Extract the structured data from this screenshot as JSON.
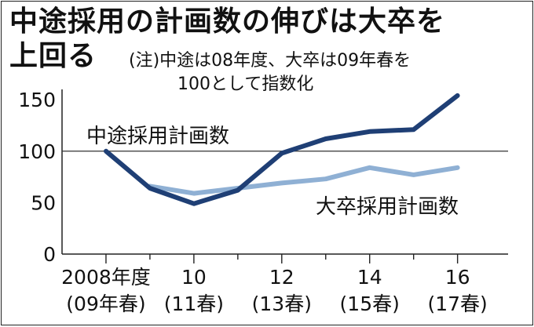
{
  "title_line1": "中途採用の計画数の伸びは大卒を",
  "title_line2": "上回る",
  "note_line1": "(注)中途は08年度、大卒は09年春を",
  "note_line2": "100として指数化",
  "chart_data": {
    "type": "line",
    "x": [
      2008,
      2009,
      2010,
      2011,
      2012,
      2013,
      2014,
      2015,
      2016
    ],
    "x_tick_labels": [
      {
        "x": 2008,
        "line1": "2008年度",
        "line2": "(09年春)"
      },
      {
        "x": 2010,
        "line1": "10",
        "line2": "(11春)"
      },
      {
        "x": 2012,
        "line1": "12",
        "line2": "(13春)"
      },
      {
        "x": 2014,
        "line1": "14",
        "line2": "(15春)"
      },
      {
        "x": 2016,
        "line1": "16",
        "line2": "(17春)"
      }
    ],
    "ylim": [
      0,
      160
    ],
    "yticks": [
      "0",
      "50",
      "100",
      "150"
    ],
    "reference_line": 100,
    "series": [
      {
        "name": "中途採用計画数",
        "color": "#1f3f75",
        "values": [
          100,
          64,
          49,
          62,
          98,
          112,
          119,
          121,
          154
        ]
      },
      {
        "name": "大卒採用計画数",
        "color": "#8fb0d4",
        "values": [
          null,
          66,
          59,
          64,
          69,
          73,
          84,
          77,
          84
        ]
      }
    ]
  }
}
